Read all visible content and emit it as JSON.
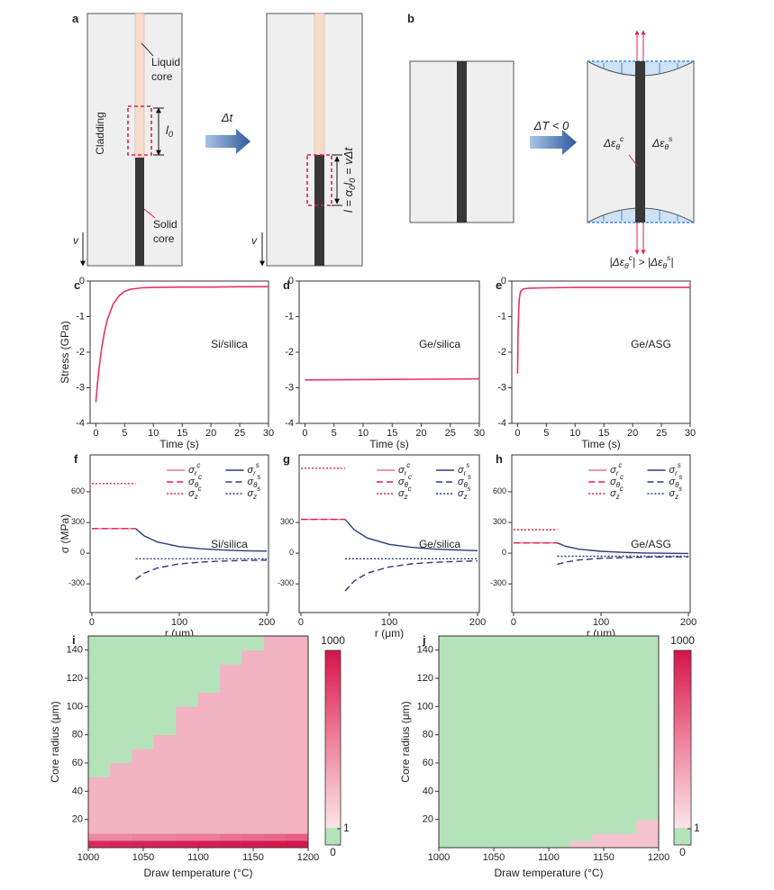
{
  "diagrams": {
    "a": {
      "label": "a",
      "cladding": "Cladding",
      "liquid_core": [
        "Liquid",
        "core"
      ],
      "solid_core": [
        "Solid",
        "core"
      ],
      "length": "l_0",
      "step": "Δt",
      "velocity_left": "v",
      "velocity_right": "v",
      "equation": "l = α_0l_0 = vΔt"
    },
    "b": {
      "label": "b",
      "step": "ΔT < 0",
      "strain_core": "Δε_θ^c",
      "strain_cladding": "Δε_θ^s",
      "inequality": "|Δε_θ^c| > |Δε_θ^s|"
    }
  },
  "chart_data": [
    {
      "panel": "c",
      "type": "line",
      "annotation": "Si/silica",
      "xlabel": "Time (s)",
      "ylabel": "Stress (GPa)",
      "color": "#e8325f",
      "x": [
        0,
        0.25,
        0.5,
        1,
        1.5,
        2,
        3,
        4,
        5,
        6,
        8,
        10,
        15,
        20,
        25,
        30
      ],
      "values": [
        -3.4,
        -2.93,
        -2.53,
        -1.89,
        -1.42,
        -1.08,
        -0.65,
        -0.42,
        -0.29,
        -0.23,
        -0.19,
        -0.18,
        -0.17,
        -0.17,
        -0.16,
        -0.16
      ],
      "xlim": [
        -1,
        30
      ],
      "xticks": [
        0,
        5,
        10,
        15,
        20,
        25,
        30
      ],
      "ylim": [
        -4,
        0
      ],
      "yticks": [
        -4,
        -3,
        -2,
        -1,
        0
      ]
    },
    {
      "panel": "d",
      "type": "line",
      "annotation": "Ge/silica",
      "xlabel": "Time (s)",
      "color": "#e8325f",
      "x": [
        0,
        30
      ],
      "values": [
        -2.78,
        -2.75
      ],
      "xlim": [
        -1,
        30
      ],
      "xticks": [
        0,
        5,
        10,
        15,
        20,
        25,
        30
      ],
      "ylim": [
        -4,
        0
      ],
      "yticks": [
        -4,
        -3,
        -2,
        -1,
        0
      ]
    },
    {
      "panel": "e",
      "type": "line",
      "annotation": "Ge/ASG",
      "xlabel": "Time (s)",
      "color": "#e8325f",
      "x": [
        0,
        0.1,
        0.2,
        0.3,
        0.5,
        1,
        2,
        5,
        10,
        30
      ],
      "values": [
        -2.6,
        -1.4,
        -0.8,
        -0.5,
        -0.3,
        -0.22,
        -0.2,
        -0.19,
        -0.18,
        -0.18
      ],
      "xlim": [
        -1,
        30
      ],
      "xticks": [
        0,
        5,
        10,
        15,
        20,
        25,
        30
      ],
      "ylim": [
        -4,
        0
      ],
      "yticks": [
        -4,
        -3,
        -2,
        -1,
        0
      ]
    },
    {
      "panel": "f",
      "type": "line",
      "annotation": "Si/silica",
      "xlabel": "r (μm)",
      "ylabel": "σ (MPa)",
      "legend": "upper right",
      "xlim": [
        -2,
        202
      ],
      "xticks": [
        0,
        100,
        200
      ],
      "ylim": [
        -580,
        960
      ],
      "yticks": [
        -300,
        0,
        300,
        600
      ],
      "series": [
        {
          "name": "σ_r^c",
          "color": "#f0708a",
          "dash": "solid",
          "x": [
            0,
            50
          ],
          "values": [
            240,
            240
          ]
        },
        {
          "name": "σ_θ^c",
          "color": "#e0204a",
          "dash": "dashed",
          "x": [
            0,
            50
          ],
          "values": [
            240,
            240
          ]
        },
        {
          "name": "σ_z^c",
          "color": "#e0204a",
          "dash": "dotted",
          "x": [
            0,
            50
          ],
          "values": [
            680,
            680
          ]
        },
        {
          "name": "σ_r^s",
          "color": "#2b3a7a",
          "dash": "solid",
          "x": [
            50,
            60,
            75,
            100,
            125,
            150,
            175,
            200
          ],
          "values": [
            240,
            168,
            109,
            64,
            43,
            31,
            24,
            20
          ]
        },
        {
          "name": "σ_θ^s",
          "color": "#2b3a7a",
          "dash": "dashed",
          "x": [
            50,
            60,
            75,
            100,
            125,
            150,
            175,
            200
          ],
          "values": [
            -255,
            -194,
            -144,
            -105,
            -87,
            -77,
            -71,
            -68
          ]
        },
        {
          "name": "σ_z^s",
          "color": "#2b3a7a",
          "dash": "dotted",
          "x": [
            50,
            200
          ],
          "values": [
            -55,
            -55
          ]
        }
      ]
    },
    {
      "panel": "g",
      "type": "line",
      "annotation": "Ge/silica",
      "xlabel": "r (μm)",
      "legend": "upper right",
      "xlim": [
        -2,
        202
      ],
      "xticks": [
        0,
        100,
        200
      ],
      "ylim": [
        -580,
        960
      ],
      "yticks": [
        -300,
        0,
        300
      ],
      "series": [
        {
          "name": "σ_r^c",
          "color": "#f0708a",
          "dash": "solid",
          "x": [
            0,
            50
          ],
          "values": [
            330,
            330
          ]
        },
        {
          "name": "σ_θ^c",
          "color": "#e0204a",
          "dash": "dashed",
          "x": [
            0,
            50
          ],
          "values": [
            330,
            330
          ]
        },
        {
          "name": "σ_z^c",
          "color": "#e0204a",
          "dash": "dotted",
          "x": [
            0,
            50
          ],
          "values": [
            830,
            830
          ]
        },
        {
          "name": "σ_r^s",
          "color": "#2b3a7a",
          "dash": "solid",
          "x": [
            50,
            60,
            75,
            100,
            125,
            150,
            175,
            200
          ],
          "values": [
            330,
            231,
            149,
            86,
            57,
            41,
            32,
            25
          ]
        },
        {
          "name": "σ_θ^s",
          "color": "#2b3a7a",
          "dash": "dashed",
          "x": [
            50,
            60,
            75,
            100,
            125,
            150,
            175,
            200
          ],
          "values": [
            -370,
            -274,
            -195,
            -134,
            -105,
            -90,
            -81,
            -75
          ]
        },
        {
          "name": "σ_z^s",
          "color": "#2b3a7a",
          "dash": "dotted",
          "x": [
            50,
            200
          ],
          "values": [
            -55,
            -55
          ]
        }
      ]
    },
    {
      "panel": "h",
      "type": "line",
      "annotation": "Ge/ASG",
      "xlabel": "r (μm)",
      "legend": "upper right",
      "xlim": [
        -2,
        202
      ],
      "xticks": [
        0,
        100,
        200
      ],
      "ylim": [
        -580,
        960
      ],
      "yticks": [
        -300,
        0,
        300,
        600
      ],
      "series": [
        {
          "name": "σ_r^c",
          "color": "#f0708a",
          "dash": "solid",
          "x": [
            0,
            50
          ],
          "values": [
            100,
            100
          ]
        },
        {
          "name": "σ_θ^c",
          "color": "#e0204a",
          "dash": "dashed",
          "x": [
            0,
            50
          ],
          "values": [
            100,
            100
          ]
        },
        {
          "name": "σ_z^c",
          "color": "#e0204a",
          "dash": "dotted",
          "x": [
            0,
            50
          ],
          "values": [
            230,
            230
          ]
        },
        {
          "name": "σ_r^s",
          "color": "#2b3a7a",
          "dash": "solid",
          "x": [
            50,
            60,
            75,
            100,
            125,
            150,
            175,
            200
          ],
          "values": [
            100,
            66,
            39,
            18,
            8,
            2,
            -1,
            -3
          ]
        },
        {
          "name": "σ_θ^s",
          "color": "#2b3a7a",
          "dash": "dashed",
          "x": [
            50,
            60,
            75,
            100,
            125,
            150,
            175,
            200
          ],
          "values": [
            -110,
            -86,
            -66,
            -50,
            -43,
            -39,
            -37,
            -35
          ]
        },
        {
          "name": "σ_z^s",
          "color": "#2b3a7a",
          "dash": "dotted",
          "x": [
            50,
            200
          ],
          "values": [
            -30,
            -30
          ]
        }
      ]
    },
    {
      "panel": "i",
      "type": "heatmap",
      "xlabel": "Draw temperature (°C)",
      "ylabel": "Core radius (μm)",
      "xlim": [
        1000,
        1200
      ],
      "xticks": [
        1000,
        1050,
        1100,
        1150,
        1200
      ],
      "ylim": [
        0,
        150
      ],
      "yticks": [
        20,
        40,
        60,
        80,
        100,
        120,
        140
      ],
      "xbins": [
        1000,
        1020,
        1040,
        1060,
        1080,
        1100,
        1120,
        1140,
        1160,
        1180,
        1200
      ],
      "ybins": [
        0,
        5,
        10,
        20,
        30,
        40,
        50,
        60,
        70,
        80,
        90,
        100,
        110,
        120,
        130,
        140,
        150
      ],
      "z": [
        [
          500,
          550,
          600,
          650,
          700,
          750,
          800,
          850,
          900,
          950
        ],
        [
          20,
          20,
          25,
          25,
          30,
          30,
          40,
          50,
          60,
          80
        ],
        [
          5,
          5,
          5,
          5,
          5,
          5,
          5,
          5,
          5,
          5
        ],
        [
          5,
          5,
          5,
          5,
          5,
          5,
          5,
          5,
          5,
          5
        ],
        [
          5,
          5,
          5,
          5,
          5,
          5,
          5,
          5,
          5,
          5
        ],
        [
          5,
          5,
          5,
          5,
          5,
          5,
          5,
          5,
          5,
          5
        ],
        [
          0,
          5,
          5,
          5,
          5,
          5,
          5,
          5,
          5,
          5
        ],
        [
          0,
          0,
          5,
          5,
          5,
          5,
          5,
          5,
          5,
          5
        ],
        [
          0,
          0,
          0,
          5,
          5,
          5,
          5,
          5,
          5,
          5
        ],
        [
          0,
          0,
          0,
          0,
          5,
          5,
          5,
          5,
          5,
          5
        ],
        [
          0,
          0,
          0,
          0,
          5,
          5,
          5,
          5,
          5,
          5
        ],
        [
          0,
          0,
          0,
          0,
          0,
          5,
          5,
          5,
          5,
          5
        ],
        [
          0,
          0,
          0,
          0,
          0,
          0,
          5,
          5,
          5,
          5
        ],
        [
          0,
          0,
          0,
          0,
          0,
          0,
          5,
          5,
          5,
          5
        ],
        [
          0,
          0,
          0,
          0,
          0,
          0,
          0,
          5,
          5,
          5
        ],
        [
          0,
          0,
          0,
          0,
          0,
          0,
          0,
          0,
          5,
          5
        ]
      ],
      "colorbar": {
        "ticks": [
          0,
          1,
          1000
        ]
      }
    },
    {
      "panel": "j",
      "type": "heatmap",
      "xlabel": "Draw temperature (°C)",
      "ylabel": "Core radius (μm)",
      "xlim": [
        1000,
        1200
      ],
      "xticks": [
        1000,
        1050,
        1100,
        1150,
        1200
      ],
      "ylim": [
        0,
        150
      ],
      "yticks": [
        20,
        40,
        60,
        80,
        100,
        120,
        140
      ],
      "xbins": [
        1000,
        1020,
        1040,
        1060,
        1080,
        1100,
        1120,
        1140,
        1160,
        1180,
        1200
      ],
      "ybins": [
        0,
        5,
        10,
        20,
        30,
        40,
        50,
        60,
        70,
        80,
        90,
        100,
        110,
        120,
        130,
        140,
        150
      ],
      "z": [
        [
          0,
          0,
          0,
          0,
          0,
          0,
          3,
          3,
          3,
          3
        ],
        [
          0,
          0,
          0,
          0,
          0,
          0,
          0,
          3,
          3,
          3
        ],
        [
          0,
          0,
          0,
          0,
          0,
          0,
          0,
          0,
          0,
          3
        ],
        [
          0,
          0,
          0,
          0,
          0,
          0,
          0,
          0,
          0,
          0
        ],
        [
          0,
          0,
          0,
          0,
          0,
          0,
          0,
          0,
          0,
          0
        ],
        [
          0,
          0,
          0,
          0,
          0,
          0,
          0,
          0,
          0,
          0
        ],
        [
          0,
          0,
          0,
          0,
          0,
          0,
          0,
          0,
          0,
          0
        ],
        [
          0,
          0,
          0,
          0,
          0,
          0,
          0,
          0,
          0,
          0
        ],
        [
          0,
          0,
          0,
          0,
          0,
          0,
          0,
          0,
          0,
          0
        ],
        [
          0,
          0,
          0,
          0,
          0,
          0,
          0,
          0,
          0,
          0
        ],
        [
          0,
          0,
          0,
          0,
          0,
          0,
          0,
          0,
          0,
          0
        ],
        [
          0,
          0,
          0,
          0,
          0,
          0,
          0,
          0,
          0,
          0
        ],
        [
          0,
          0,
          0,
          0,
          0,
          0,
          0,
          0,
          0,
          0
        ],
        [
          0,
          0,
          0,
          0,
          0,
          0,
          0,
          0,
          0,
          0
        ],
        [
          0,
          0,
          0,
          0,
          0,
          0,
          0,
          0,
          0,
          0
        ],
        [
          0,
          0,
          0,
          0,
          0,
          0,
          0,
          0,
          0,
          0
        ]
      ],
      "colorbar": {
        "ticks": [
          0,
          1,
          1000
        ]
      }
    }
  ]
}
